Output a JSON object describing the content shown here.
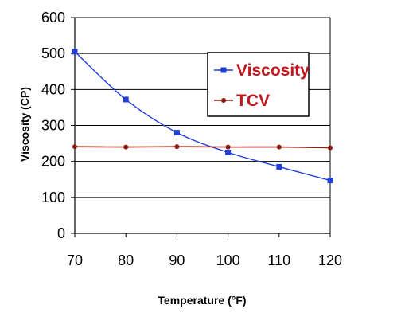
{
  "chart_data": {
    "type": "line",
    "title": "",
    "xlabel": "Temperature (°F)",
    "ylabel": "Viscosity (CP)",
    "xlim": [
      70,
      120
    ],
    "ylim": [
      0,
      600
    ],
    "xticks": [
      70,
      80,
      90,
      100,
      110,
      120
    ],
    "yticks": [
      0,
      100,
      200,
      300,
      400,
      500,
      600
    ],
    "grid": "horizontal",
    "legend_position": "right",
    "x": [
      70,
      80,
      90,
      100,
      110,
      120
    ],
    "series": [
      {
        "name": "Viscosity",
        "values": [
          505,
          372,
          280,
          225,
          185,
          147
        ],
        "color": "#1f3fd8",
        "marker": "square"
      },
      {
        "name": "TCV",
        "values": [
          241,
          240,
          241,
          240,
          240,
          238
        ],
        "color": "#8b1a10",
        "marker": "circle"
      }
    ]
  }
}
